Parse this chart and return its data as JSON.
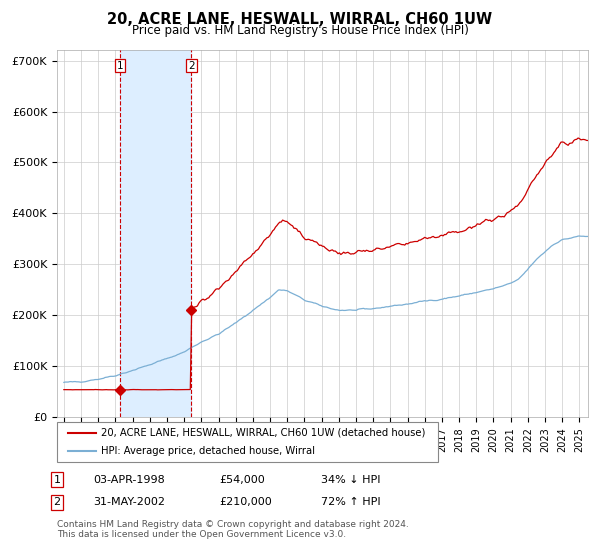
{
  "title": "20, ACRE LANE, HESWALL, WIRRAL, CH60 1UW",
  "subtitle": "Price paid vs. HM Land Registry's House Price Index (HPI)",
  "ylim": [
    0,
    720000
  ],
  "yticks": [
    0,
    100000,
    200000,
    300000,
    400000,
    500000,
    600000,
    700000
  ],
  "ytick_labels": [
    "£0",
    "£100K",
    "£200K",
    "£300K",
    "£400K",
    "£500K",
    "£600K",
    "£700K"
  ],
  "sale1_date": 1998.25,
  "sale1_price": 54000,
  "sale2_date": 2002.42,
  "sale2_price": 210000,
  "hpi_line_color": "#7bafd4",
  "price_line_color": "#cc0000",
  "marker_color": "#cc0000",
  "shade_color": "#ddeeff",
  "vline_color": "#cc0000",
  "legend_label1": "20, ACRE LANE, HESWALL, WIRRAL, CH60 1UW (detached house)",
  "legend_label2": "HPI: Average price, detached house, Wirral",
  "table_row1": [
    "1",
    "03-APR-1998",
    "£54,000",
    "34% ↓ HPI"
  ],
  "table_row2": [
    "2",
    "31-MAY-2002",
    "£210,000",
    "72% ↑ HPI"
  ],
  "footnote1": "Contains HM Land Registry data © Crown copyright and database right 2024.",
  "footnote2": "This data is licensed under the Open Government Licence v3.0.",
  "background_color": "#ffffff",
  "grid_color": "#cccccc",
  "xstart": 1995.0,
  "xend": 2025.5
}
